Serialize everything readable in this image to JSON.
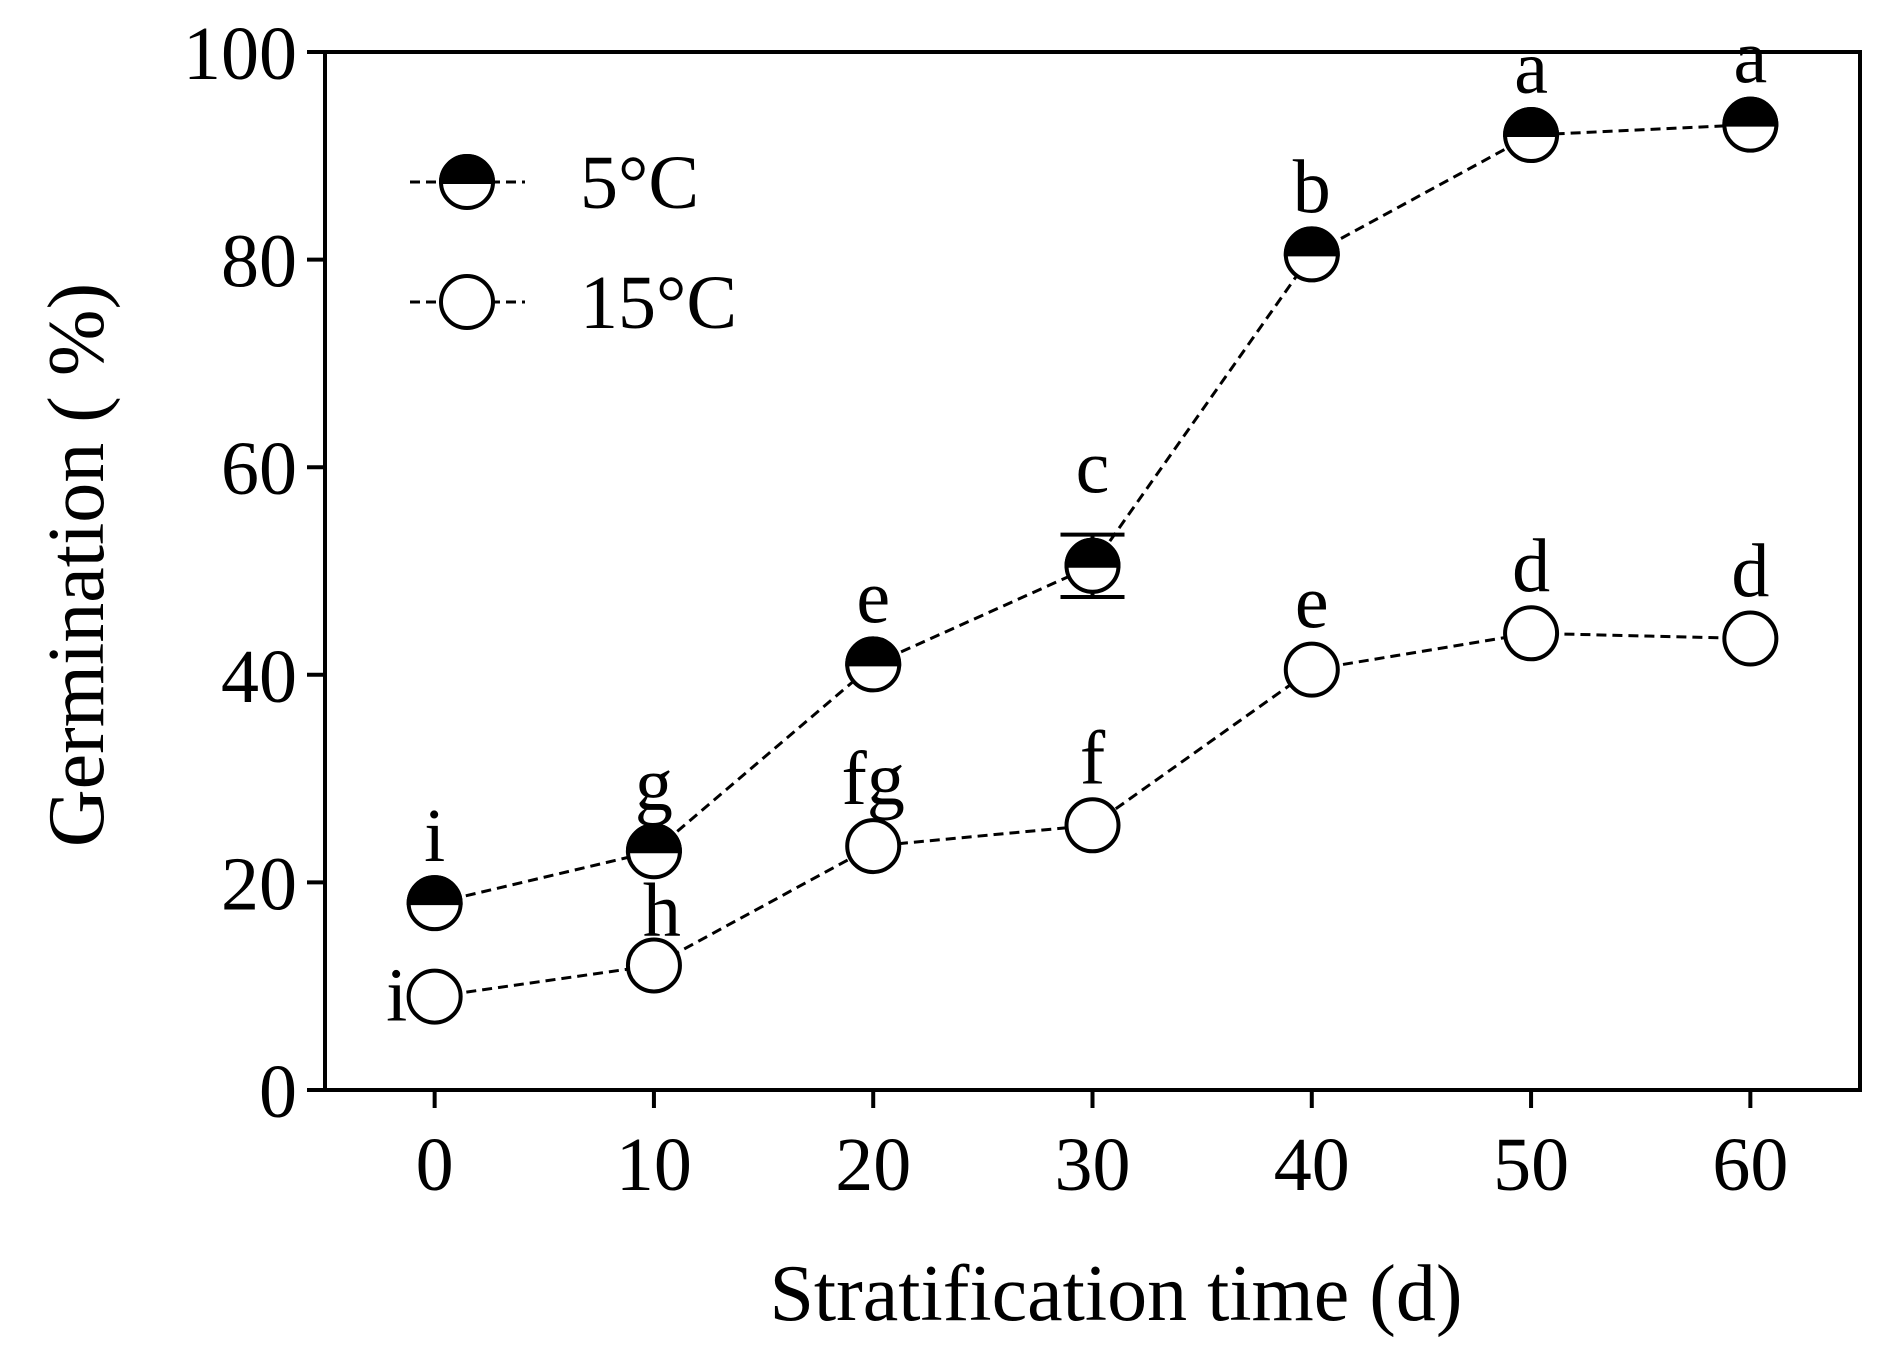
{
  "chart_data": {
    "type": "line",
    "title": "",
    "xlabel": "Stratification time (d)",
    "ylabel": "Germination ( %)",
    "xlim": [
      -5,
      65
    ],
    "ylim": [
      0,
      100
    ],
    "x_ticks": [
      "0",
      "10",
      "20",
      "30",
      "40",
      "50",
      "60"
    ],
    "y_ticks": [
      "0",
      "20",
      "40",
      "60",
      "80",
      "100"
    ],
    "x": [
      0,
      10,
      20,
      30,
      40,
      50,
      60
    ],
    "legend_position": "top-left",
    "series": [
      {
        "name": "5°C",
        "marker": "half-filled-circle",
        "line_style": "dashed",
        "values": [
          18,
          23,
          41,
          50.5,
          80.5,
          92,
          93
        ],
        "error": [
          0,
          0,
          0,
          3,
          0,
          0,
          0
        ],
        "labels": [
          "i",
          "g",
          "e",
          "c",
          "b",
          "a",
          "a"
        ]
      },
      {
        "name": "15°C",
        "marker": "open-circle",
        "line_style": "dashed",
        "values": [
          9,
          12,
          23.5,
          25.5,
          40.5,
          44,
          43.5
        ],
        "error": [
          0,
          0,
          0,
          0,
          0,
          0,
          0
        ],
        "labels": [
          "i",
          "h",
          "fg",
          "f",
          "e",
          "d",
          "d"
        ]
      }
    ],
    "colors": {
      "ink": "#000000",
      "background": "#ffffff"
    }
  }
}
